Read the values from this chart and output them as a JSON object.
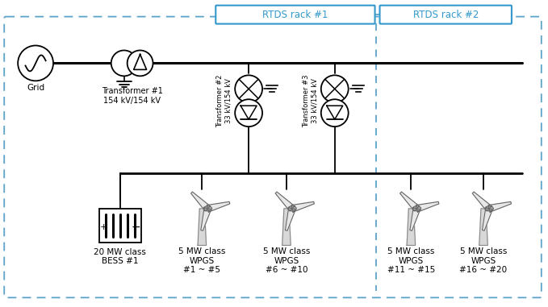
{
  "bg_color": "#ffffff",
  "line_color": "#000000",
  "rack1_label": "RTDS rack #1",
  "rack2_label": "RTDS rack #2",
  "grid_label": "Grid",
  "transformer1_label": "Transformer #1\n154 kV/154 kV",
  "transformer2_label": "Transformer #2\n33 kV/154 kV",
  "transformer3_label": "Transformer #3\n33 kV/154 kV",
  "bess_label": "20 MW class\nBESS #1",
  "wpgs_labels": [
    "5 MW class\nWPGS\n#1 ~ #5",
    "5 MW class\nWPGS\n#6 ~ #10",
    "5 MW class\nWPGS\n#11 ~ #15",
    "5 MW class\nWPGS\n#16 ~ #20"
  ],
  "dashed_color": "#5ba3c9",
  "rack_box_color": "#3399cc",
  "fig_w": 6.79,
  "fig_h": 3.81,
  "dpi": 100
}
